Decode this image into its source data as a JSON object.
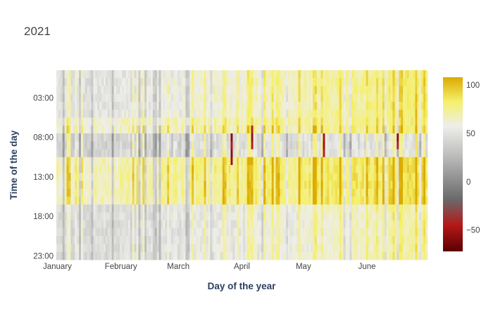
{
  "chart_data": {
    "type": "heatmap",
    "title": "2021",
    "xlabel": "Day of the year",
    "ylabel": "Time of the day",
    "x_tick_labels": [
      "January",
      "February",
      "March",
      "April",
      "May",
      "June"
    ],
    "x_tick_days": [
      1,
      32,
      60,
      91,
      121,
      152
    ],
    "x_range_days": [
      1,
      181
    ],
    "y_tick_labels": [
      "03:00",
      "08:00",
      "13:00",
      "18:00",
      "23:00"
    ],
    "y_tick_hours": [
      3,
      8,
      13,
      18,
      23
    ],
    "y_range_hours": [
      0,
      23
    ],
    "colorbar": {
      "ticks": [
        -50,
        0,
        50,
        100
      ],
      "tick_labels": [
        "−50",
        "0",
        "50",
        "100"
      ],
      "zmin": -72,
      "zmax": 108,
      "colorscale": [
        [
          0.0,
          "#5a0000"
        ],
        [
          0.15,
          "#b51818"
        ],
        [
          0.3,
          "#6a6a6a"
        ],
        [
          0.55,
          "#bdbdbd"
        ],
        [
          0.72,
          "#eeeeea"
        ],
        [
          0.86,
          "#f5f06a"
        ],
        [
          1.0,
          "#dcaa00"
        ]
      ]
    },
    "z_note": "",
    "reference_values": {
      "night_winter": 48,
      "night_spring": 82,
      "morning_winter": 40,
      "afternoon_winter": 65,
      "afternoon_spring": 88,
      "evening_winter": 45,
      "evening_spring": 72
    }
  }
}
